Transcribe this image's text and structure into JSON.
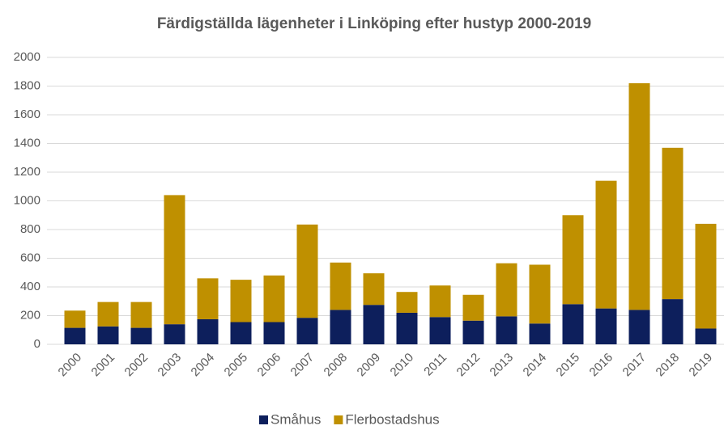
{
  "chart_data": {
    "type": "stacked_bar",
    "title": "Färdigställda lägenheter i Linköping efter hustyp 2000-2019",
    "categories": [
      "2000",
      "2001",
      "2002",
      "2003",
      "2004",
      "2005",
      "2006",
      "2007",
      "2008",
      "2009",
      "2010",
      "2011",
      "2012",
      "2013",
      "2014",
      "2015",
      "2016",
      "2017",
      "2018",
      "2019"
    ],
    "series": [
      {
        "name": "Småhus",
        "color": "#0d1f5c",
        "values": [
          115,
          125,
          115,
          140,
          175,
          155,
          155,
          185,
          240,
          275,
          220,
          190,
          165,
          195,
          145,
          280,
          250,
          240,
          315,
          110
        ]
      },
      {
        "name": "Flerbostadshus",
        "color": "#bf9000",
        "values": [
          120,
          170,
          180,
          900,
          285,
          295,
          325,
          650,
          330,
          220,
          145,
          220,
          180,
          370,
          410,
          620,
          890,
          1580,
          1055,
          730
        ]
      }
    ],
    "ylim": [
      0,
      2000
    ],
    "yticks": [
      0,
      200,
      400,
      600,
      800,
      1000,
      1200,
      1400,
      1600,
      1800,
      2000
    ],
    "grid": true,
    "legend": "bottom"
  }
}
